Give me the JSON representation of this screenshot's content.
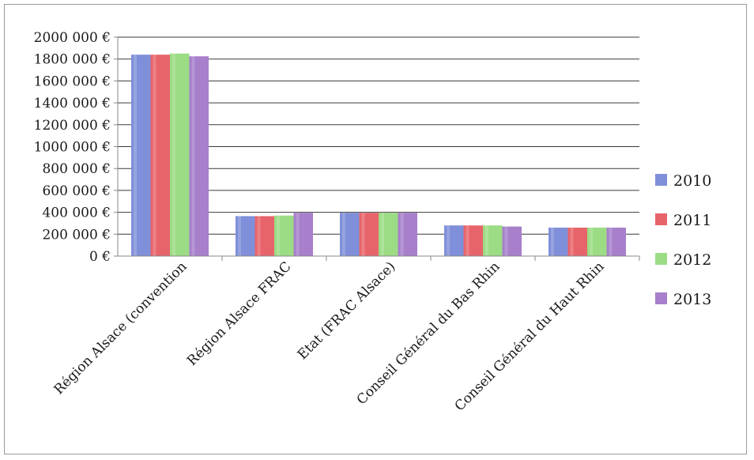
{
  "chart_data": {
    "type": "bar",
    "categories": [
      "Région Alsace (convention",
      "Région Alsace FRAC",
      "Etat (FRAC Alsace)",
      "Conseil Général du Bas Rhin",
      "Conseil Général du Haut Rhin"
    ],
    "series": [
      {
        "name": "2010",
        "color": "#7f8fd9",
        "values": [
          1840000,
          365000,
          395000,
          280000,
          260000
        ]
      },
      {
        "name": "2011",
        "color": "#e8646b",
        "values": [
          1840000,
          365000,
          395000,
          280000,
          260000
        ]
      },
      {
        "name": "2012",
        "color": "#9bdc84",
        "values": [
          1850000,
          370000,
          395000,
          280000,
          260000
        ]
      },
      {
        "name": "2013",
        "color": "#a77fcb",
        "values": [
          1825000,
          395000,
          395000,
          270000,
          260000
        ]
      }
    ],
    "ylim": [
      0,
      2000000
    ],
    "yticks": [
      {
        "value": 0,
        "label": "0 €"
      },
      {
        "value": 200000,
        "label": "200 000 €"
      },
      {
        "value": 400000,
        "label": "400 000 €"
      },
      {
        "value": 600000,
        "label": "600 000 €"
      },
      {
        "value": 800000,
        "label": "800 000 €"
      },
      {
        "value": 1000000,
        "label": "1000 000 €"
      },
      {
        "value": 1200000,
        "label": "1200 000 €"
      },
      {
        "value": 1400000,
        "label": "1400 000 €"
      },
      {
        "value": 1600000,
        "label": "1600 000 €"
      },
      {
        "value": 1800000,
        "label": "1800 000 €"
      },
      {
        "value": 2000000,
        "label": "2000 000 €"
      }
    ],
    "grid": true,
    "legend_position": "right"
  }
}
